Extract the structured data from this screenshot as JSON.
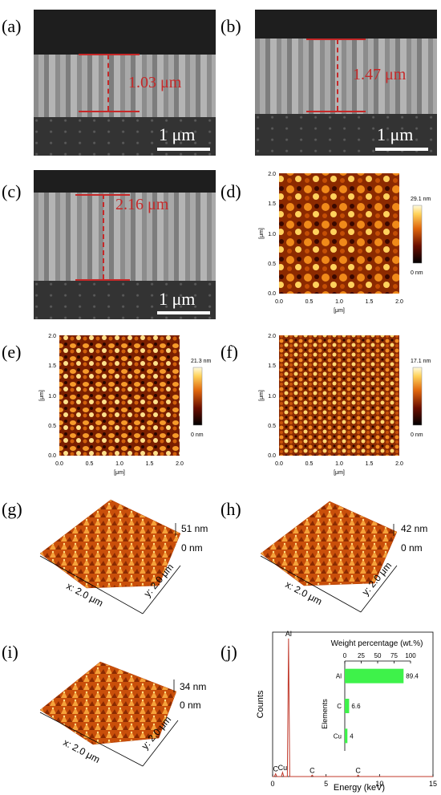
{
  "panels": {
    "a": {
      "label": "(a)",
      "thickness": "1.03 μm",
      "scale": "1 μm"
    },
    "b": {
      "label": "(b)",
      "thickness": "1.47 μm",
      "scale": "1 μm"
    },
    "c": {
      "label": "(c)",
      "thickness": "2.16 μm",
      "scale": "1 μm"
    },
    "d": {
      "label": "(d)",
      "colorbar_max": "29.1 nm",
      "colorbar_min": "0 nm",
      "axis_unit": "[μm]"
    },
    "e": {
      "label": "(e)",
      "colorbar_max": "21.3 nm",
      "colorbar_min": "0 nm",
      "axis_unit": "[μm]"
    },
    "f": {
      "label": "(f)",
      "colorbar_max": "17.1 nm",
      "colorbar_min": "0 nm",
      "axis_unit": "[μm]"
    },
    "g": {
      "label": "(g)",
      "zmax": "51 nm",
      "zmin": "0 nm",
      "xlabel": "x: 2.0 μm",
      "ylabel": "y: 2.0 μm"
    },
    "h": {
      "label": "(h)",
      "zmax": "42 nm",
      "zmin": "0 nm",
      "xlabel": "x: 2.0 μm",
      "ylabel": "y: 2.0 μm"
    },
    "i": {
      "label": "(i)",
      "zmax": "34 nm",
      "zmin": "0 nm",
      "xlabel": "x: 2.0 μm",
      "ylabel": "y: 2.0 μm"
    },
    "j": {
      "label": "(j)"
    }
  },
  "afm_ticks": [
    "0.0",
    "0.5",
    "1.0",
    "1.5",
    "2.0"
  ],
  "chart_data": {
    "type": "line",
    "xlabel": "Energy (keV)",
    "ylabel": "Counts",
    "xlim": [
      0,
      15
    ],
    "xticks": [
      "0",
      "5",
      "10",
      "15"
    ],
    "peaks": [
      {
        "element": "C",
        "energy": 0.28,
        "height": 0.02
      },
      {
        "element": "Cu",
        "energy": 0.93,
        "height": 0.03
      },
      {
        "element": "Al",
        "energy": 1.49,
        "height": 1.0
      },
      {
        "element": "C",
        "energy": 3.7,
        "height": 0.01
      },
      {
        "element": "C",
        "energy": 8.0,
        "height": 0.01
      }
    ],
    "inset": {
      "type": "bar",
      "title": "Weight percentage (wt.%)",
      "ylabel": "Elements",
      "xlim": [
        0,
        100
      ],
      "xticks": [
        "0",
        "25",
        "50",
        "75",
        "100"
      ],
      "categories": [
        "Al",
        "C",
        "Cu"
      ],
      "values": [
        89.4,
        6.6,
        4
      ],
      "value_labels": [
        "89.4",
        "6.6",
        "4"
      ],
      "bar_color": "#3ef24a"
    }
  }
}
